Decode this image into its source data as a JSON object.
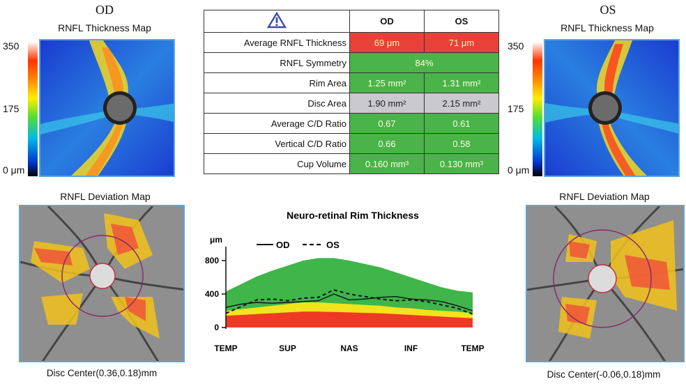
{
  "od": {
    "eye_label": "OD",
    "thickness_map_title": "RNFL Thickness Map",
    "deviation_map_title": "RNFL Deviation Map",
    "disc_center": "Disc Center(0.36,0.18)mm",
    "scale": {
      "max": "350",
      "mid": "175",
      "min": "0 μm"
    }
  },
  "os": {
    "eye_label": "OS",
    "thickness_map_title": "RNFL Thickness Map",
    "deviation_map_title": "RNFL Deviation Map",
    "disc_center": "Disc Center(-0.06,0.18)mm",
    "scale": {
      "max": "350",
      "mid": "175",
      "min": "0 μm"
    }
  },
  "metrics_table": {
    "header_icon": "warning-triangle-icon",
    "col_od": "OD",
    "col_os": "OS",
    "rows": [
      {
        "label": "Average RNFL Thickness",
        "od": "69 μm",
        "os": "71 μm",
        "status": "red"
      },
      {
        "label": "RNFL Symmetry",
        "merged": "84%",
        "status": "green"
      },
      {
        "label": "Rim Area",
        "od": "1.25 mm²",
        "os": "1.31 mm²",
        "status": "green"
      },
      {
        "label": "Disc Area",
        "od": "1.90 mm²",
        "os": "2.15 mm²",
        "status": "gray"
      },
      {
        "label": "Average C/D Ratio",
        "od": "0.67",
        "os": "0.61",
        "status": "green"
      },
      {
        "label": "Vertical C/D Ratio",
        "od": "0.66",
        "os": "0.58",
        "status": "green"
      },
      {
        "label": "Cup Volume",
        "od": "0.160 mm³",
        "os": "0.130 mm³",
        "status": "green"
      }
    ]
  },
  "colors": {
    "red_status": "#e8413a",
    "green_status": "#4ab34a",
    "gray_status": "#c9c9ce",
    "normal_band": "#3fb54a",
    "borderline_band": "#f2e31c",
    "abnormal_band": "#ee3a24"
  },
  "chart_data": {
    "type": "line",
    "title": "Neuro-retinal Rim Thickness",
    "ylabel": "μm",
    "yticks": [
      0,
      400,
      800
    ],
    "ylim": [
      0,
      900
    ],
    "categories": [
      "TEMP",
      "SUP",
      "NAS",
      "INF",
      "TEMP"
    ],
    "x": [
      0,
      4,
      8,
      12,
      16,
      20,
      24,
      28,
      32,
      36,
      40,
      44,
      48,
      52,
      56,
      60,
      64
    ],
    "legend": [
      "OD",
      "OS"
    ],
    "bands": {
      "normal_upper": [
        430,
        520,
        610,
        680,
        740,
        800,
        830,
        830,
        800,
        760,
        720,
        660,
        600,
        540,
        480,
        440,
        420
      ],
      "borderline_upper": [
        200,
        220,
        240,
        260,
        280,
        300,
        300,
        290,
        280,
        270,
        260,
        240,
        230,
        210,
        200,
        190,
        170
      ],
      "abnormal_upper": [
        140,
        150,
        160,
        170,
        180,
        190,
        190,
        185,
        180,
        175,
        170,
        160,
        150,
        140,
        130,
        120,
        110
      ]
    },
    "series": [
      {
        "name": "OD",
        "values": [
          240,
          280,
          300,
          290,
          300,
          310,
          320,
          400,
          330,
          340,
          360,
          370,
          340,
          330,
          310,
          260,
          200
        ]
      },
      {
        "name": "OS",
        "values": [
          170,
          250,
          330,
          340,
          320,
          350,
          360,
          450,
          400,
          370,
          340,
          320,
          330,
          310,
          270,
          230,
          160
        ]
      }
    ]
  }
}
